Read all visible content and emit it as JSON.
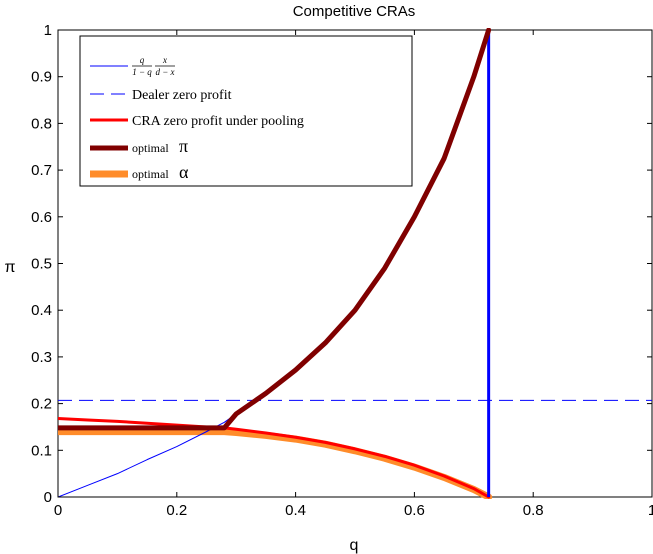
{
  "chart_data": {
    "type": "line",
    "title": "Competitive CRAs",
    "xlabel": "q",
    "ylabel": "π",
    "xlim": [
      0,
      1
    ],
    "ylim": [
      0,
      1
    ],
    "xticks": [
      "0",
      "0.2",
      "0.4",
      "0.6",
      "0.8",
      "1"
    ],
    "yticks": [
      "0",
      "0.1",
      "0.2",
      "0.3",
      "0.4",
      "0.5",
      "0.6",
      "0.7",
      "0.8",
      "0.9",
      "1"
    ],
    "legend_position": "top-left",
    "series": [
      {
        "key": "curve",
        "legend": {
          "numA": "q",
          "denA": "1 − q",
          "numB": "x",
          "denB": "d − x"
        },
        "color": "#0000ff",
        "style": "solid",
        "x": [
          0,
          0.05,
          0.1,
          0.15,
          0.2,
          0.25,
          0.28,
          0.3,
          0.35,
          0.4,
          0.45,
          0.5,
          0.55,
          0.6,
          0.65,
          0.7,
          0.725
        ],
        "y": [
          0,
          0.025,
          0.05,
          0.08,
          0.108,
          0.14,
          0.16,
          0.178,
          0.222,
          0.272,
          0.33,
          0.4,
          0.49,
          0.6,
          0.725,
          0.9,
          1.0
        ]
      },
      {
        "key": "dealer",
        "legend": "Dealer zero profit",
        "color": "#0000ff",
        "style": "dashed",
        "x": [
          0,
          1
        ],
        "y": [
          0.207,
          0.207
        ]
      },
      {
        "key": "cra",
        "legend": "CRA zero profit under pooling",
        "color": "#ff0000",
        "style": "solid",
        "x": [
          0,
          0.05,
          0.1,
          0.15,
          0.2,
          0.25,
          0.28,
          0.3,
          0.35,
          0.4,
          0.45,
          0.5,
          0.55,
          0.6,
          0.65,
          0.7,
          0.725
        ],
        "y": [
          0.168,
          0.165,
          0.162,
          0.158,
          0.154,
          0.15,
          0.148,
          0.145,
          0.137,
          0.128,
          0.117,
          0.103,
          0.087,
          0.068,
          0.045,
          0.018,
          0
        ]
      },
      {
        "key": "pi",
        "legend": {
          "prefix": "optimal",
          "symbol": "π"
        },
        "color": "#800000",
        "style": "thick",
        "x": [
          0,
          0.28,
          0.3,
          0.35,
          0.4,
          0.45,
          0.5,
          0.55,
          0.6,
          0.65,
          0.7,
          0.725
        ],
        "y": [
          0.148,
          0.148,
          0.178,
          0.222,
          0.272,
          0.33,
          0.4,
          0.49,
          0.6,
          0.725,
          0.9,
          1.0
        ]
      },
      {
        "key": "alpha",
        "legend": {
          "prefix": "optimal",
          "symbol": "α"
        },
        "color": "#ff8c2a",
        "style": "thick",
        "x": [
          0,
          0.05,
          0.1,
          0.15,
          0.2,
          0.25,
          0.28,
          0.3,
          0.35,
          0.4,
          0.45,
          0.5,
          0.55,
          0.6,
          0.65,
          0.7,
          0.725
        ],
        "y": [
          0.14,
          0.14,
          0.14,
          0.14,
          0.14,
          0.14,
          0.14,
          0.138,
          0.132,
          0.124,
          0.113,
          0.099,
          0.083,
          0.064,
          0.042,
          0.016,
          0
        ]
      },
      {
        "key": "vline",
        "legend": "",
        "color": "#0000ff",
        "style": "vertical",
        "x": [
          0.725,
          0.725
        ],
        "y": [
          0,
          1
        ]
      }
    ]
  }
}
